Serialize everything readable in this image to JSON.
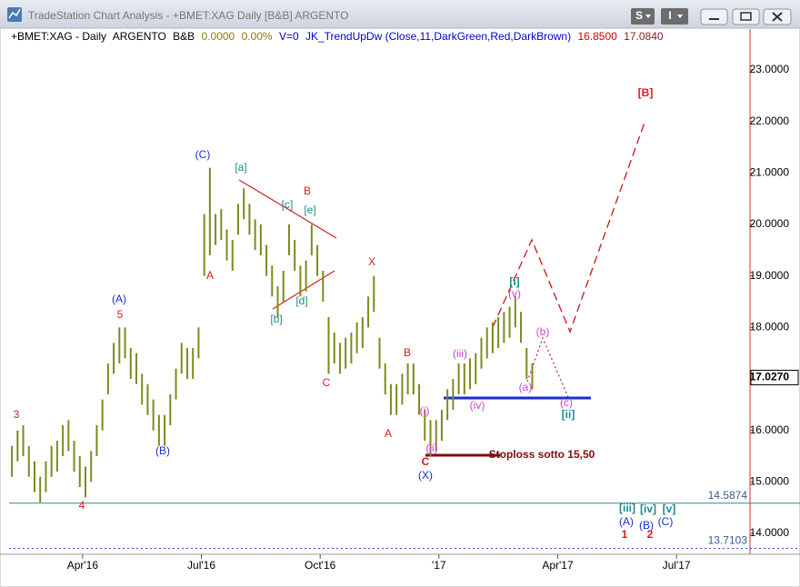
{
  "window": {
    "title": "TradeStation Chart Analysis - +BMET:XAG Daily [B&B] ARGENTO",
    "buttons": [
      "S",
      "I"
    ]
  },
  "chart_data": {
    "type": "hilo",
    "info_line": [
      "+BMET:XAG - Daily",
      "ARGENTO",
      "B&B",
      "0.0000",
      "0.00%",
      "V=0",
      "JK_TrendUpDw (Close,11,DarkGreen,Red,DarkBrown)",
      "16.8500",
      "17.0840"
    ],
    "color": "#7d8a1e",
    "low": [
      15.1,
      15.4,
      15.5,
      15.1,
      14.8,
      14.6,
      14.8,
      15.1,
      15.2,
      15.5,
      15.6,
      15.2,
      14.9,
      14.7,
      15.0,
      15.5,
      16.0,
      16.7,
      17.1,
      17.3,
      17.4,
      17.0,
      16.9,
      16.5,
      16.3,
      16.0,
      15.7,
      15.7,
      16.1,
      16.6,
      17.1,
      17.0,
      17.0,
      17.4,
      19.0,
      19.4,
      19.6,
      19.7,
      19.3,
      19.1,
      19.8,
      20.1,
      19.8,
      19.5,
      19.4,
      19.0,
      18.6,
      18.2,
      18.5,
      19.4,
      19.1,
      18.6,
      18.7,
      19.4,
      19.0,
      18.5,
      17.1,
      17.3,
      17.1,
      17.2,
      17.3,
      17.5,
      17.6,
      18.0,
      18.3,
      17.2,
      16.7,
      16.3,
      16.3,
      16.5,
      16.7,
      16.7,
      16.3,
      15.8,
      15.5,
      15.6,
      15.8,
      16.2,
      16.4,
      16.7,
      16.7,
      16.8,
      16.9,
      17.2,
      17.4,
      17.5,
      17.6,
      17.7,
      17.8,
      18.0,
      17.7,
      17.0,
      16.8
    ],
    "high": [
      15.7,
      16.0,
      16.1,
      15.7,
      15.4,
      15.1,
      15.4,
      15.7,
      15.8,
      16.1,
      16.2,
      15.8,
      15.5,
      15.3,
      15.6,
      16.1,
      16.6,
      17.3,
      17.7,
      18.0,
      18.0,
      17.6,
      17.5,
      17.1,
      16.9,
      16.6,
      16.3,
      16.3,
      16.7,
      17.2,
      17.7,
      17.6,
      17.6,
      18.0,
      20.2,
      21.1,
      20.2,
      20.3,
      19.9,
      19.7,
      20.4,
      20.7,
      20.4,
      20.1,
      20.0,
      19.6,
      19.2,
      18.8,
      19.1,
      20.0,
      19.7,
      19.2,
      19.3,
      20.0,
      19.6,
      19.1,
      18.2,
      17.9,
      17.7,
      17.8,
      17.9,
      18.1,
      18.2,
      18.6,
      19.0,
      17.8,
      17.3,
      16.9,
      16.9,
      17.1,
      17.3,
      17.3,
      16.9,
      16.4,
      16.2,
      16.2,
      16.4,
      16.8,
      17.0,
      17.3,
      17.3,
      17.4,
      17.5,
      17.8,
      18.0,
      18.1,
      18.2,
      18.3,
      18.4,
      18.6,
      18.3,
      17.6,
      17.3
    ],
    "xlim": [
      0,
      131
    ],
    "xticks": [
      {
        "value": 13,
        "label": "Apr'16"
      },
      {
        "value": 34,
        "label": "Jul'16"
      },
      {
        "value": 55,
        "label": "Oct'16"
      },
      {
        "value": 76,
        "label": "'17"
      },
      {
        "value": 97,
        "label": "Apr'17"
      },
      {
        "value": 118,
        "label": "Jul'17"
      }
    ],
    "ylim": [
      13.63,
      23.51
    ],
    "yticks": [
      {
        "value": 14,
        "label": "14.0000"
      },
      {
        "value": 15,
        "label": "15.0000"
      },
      {
        "value": 16,
        "label": "16.0000"
      },
      {
        "value": 17,
        "label": "17.0000"
      },
      {
        "value": 18,
        "label": "18.0000"
      },
      {
        "value": 19,
        "label": "19.0000"
      },
      {
        "value": 20,
        "label": "20.0000"
      },
      {
        "value": 21,
        "label": "21.0000"
      },
      {
        "value": 22,
        "label": "22.0000"
      },
      {
        "value": 23,
        "label": "23.0000"
      }
    ],
    "last_price": {
      "value": 17.027,
      "label": "17.0270"
    },
    "reference_lines": [
      {
        "value": 14.5874,
        "color": "#2e8b8b",
        "style": "solid"
      },
      {
        "value": 13.7103,
        "color": "#3355cc",
        "style": "dotted"
      }
    ],
    "annotations": [
      "3",
      "4",
      "(A)",
      "5",
      "(B)",
      "(C)",
      "A",
      "[a]",
      "[b]",
      "[c]",
      "[d]",
      "[e]",
      "B",
      "C",
      "X",
      "B",
      "A",
      "C",
      "(X)",
      "(i)",
      "(ii)",
      "(iii)",
      "(iv)",
      "(v)",
      "[i]",
      "(a)",
      "(b)",
      "(c)",
      "[ii]",
      "[B]",
      "Stoploss  sotto 15,50",
      "[iii]",
      "[iv]",
      "[v]",
      "(A)",
      "(B)",
      "(C)",
      "1",
      "2"
    ]
  }
}
